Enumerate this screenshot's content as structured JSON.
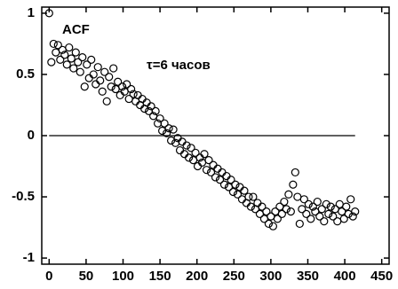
{
  "chart_data": {
    "type": "scatter",
    "annotations": [
      {
        "text": "ACF"
      },
      {
        "text": "τ=6 часов"
      }
    ],
    "x": [
      0,
      3,
      6,
      9,
      12,
      15,
      18,
      21,
      24,
      27,
      30,
      33,
      36,
      39,
      42,
      45,
      48,
      51,
      54,
      57,
      60,
      63,
      66,
      69,
      72,
      75,
      78,
      81,
      84,
      87,
      90,
      93,
      96,
      99,
      102,
      105,
      108,
      111,
      114,
      117,
      120,
      123,
      126,
      129,
      132,
      135,
      138,
      141,
      144,
      147,
      150,
      153,
      156,
      159,
      162,
      165,
      168,
      171,
      174,
      177,
      180,
      183,
      186,
      189,
      192,
      195,
      198,
      201,
      204,
      207,
      210,
      213,
      216,
      219,
      222,
      225,
      228,
      231,
      234,
      237,
      240,
      243,
      246,
      249,
      252,
      255,
      258,
      261,
      264,
      267,
      270,
      273,
      276,
      279,
      282,
      285,
      288,
      291,
      294,
      297,
      300,
      303,
      306,
      309,
      312,
      315,
      318,
      321,
      324,
      327,
      330,
      333,
      336,
      339,
      342,
      345,
      348,
      351,
      354,
      357,
      360,
      363,
      366,
      369,
      372,
      375,
      378,
      381,
      384,
      387,
      390,
      393,
      396,
      399,
      402,
      405,
      408,
      411,
      414
    ],
    "values": [
      1.0,
      0.6,
      0.75,
      0.68,
      0.74,
      0.62,
      0.7,
      0.66,
      0.58,
      0.72,
      0.63,
      0.55,
      0.68,
      0.6,
      0.52,
      0.64,
      0.4,
      0.58,
      0.47,
      0.62,
      0.5,
      0.42,
      0.56,
      0.45,
      0.36,
      0.52,
      0.28,
      0.48,
      0.4,
      0.55,
      0.38,
      0.44,
      0.33,
      0.4,
      0.36,
      0.42,
      0.3,
      0.38,
      0.34,
      0.28,
      0.33,
      0.25,
      0.3,
      0.22,
      0.27,
      0.2,
      0.24,
      0.16,
      0.2,
      0.1,
      0.14,
      0.04,
      0.1,
      0.02,
      0.06,
      -0.04,
      0.05,
      -0.06,
      -0.02,
      -0.12,
      -0.05,
      -0.15,
      -0.08,
      -0.18,
      -0.1,
      -0.2,
      -0.14,
      -0.25,
      -0.18,
      -0.22,
      -0.15,
      -0.28,
      -0.2,
      -0.3,
      -0.24,
      -0.34,
      -0.27,
      -0.36,
      -0.3,
      -0.4,
      -0.33,
      -0.42,
      -0.36,
      -0.46,
      -0.4,
      -0.48,
      -0.42,
      -0.52,
      -0.45,
      -0.55,
      -0.5,
      -0.58,
      -0.5,
      -0.6,
      -0.55,
      -0.64,
      -0.58,
      -0.68,
      -0.62,
      -0.72,
      -0.66,
      -0.74,
      -0.62,
      -0.68,
      -0.58,
      -0.64,
      -0.54,
      -0.6,
      -0.48,
      -0.62,
      -0.4,
      -0.3,
      -0.5,
      -0.72,
      -0.6,
      -0.52,
      -0.64,
      -0.56,
      -0.68,
      -0.58,
      -0.62,
      -0.54,
      -0.66,
      -0.6,
      -0.7,
      -0.56,
      -0.64,
      -0.58,
      -0.66,
      -0.6,
      -0.7,
      -0.56,
      -0.62,
      -0.68,
      -0.58,
      -0.64,
      -0.52,
      -0.66,
      -0.62
    ],
    "color": "#000000",
    "hline": 0,
    "xlim": [
      -10,
      460
    ],
    "ylim": [
      -1.05,
      1.05
    ],
    "xticks": [
      0,
      50,
      100,
      150,
      200,
      250,
      300,
      350,
      400,
      450
    ],
    "yticks": [
      1,
      0.5,
      0,
      -0.5,
      -1
    ]
  }
}
